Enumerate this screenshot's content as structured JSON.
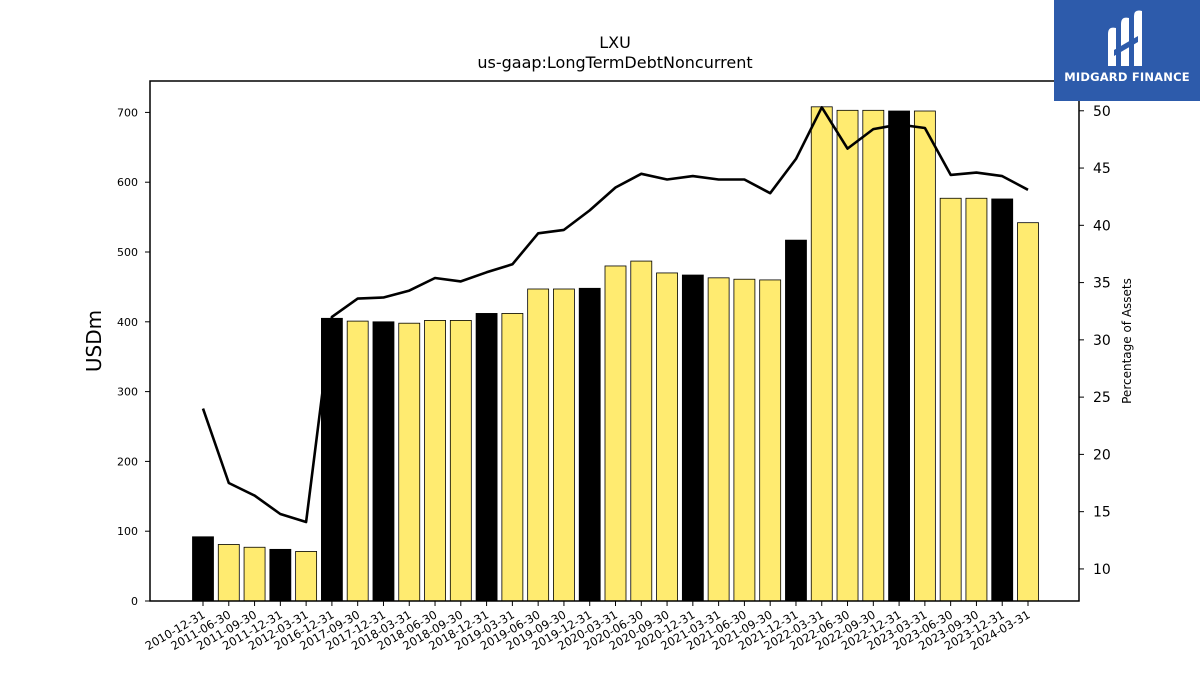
{
  "chart_data": {
    "type": "bar",
    "title": "LXU",
    "subtitle": "us-gaap:LongTermDebtNoncurrent",
    "ylabel": "USDm",
    "y2label": "Percentage of Assets",
    "ylim": [
      0,
      745
    ],
    "y2lim": [
      7.2,
      52.6
    ],
    "yticks": [
      0,
      100,
      200,
      300,
      400,
      500,
      600,
      700
    ],
    "y2ticks": [
      10,
      15,
      20,
      25,
      30,
      35,
      40,
      45,
      50
    ],
    "categories": [
      "2010-12-31",
      "2011-06-30",
      "2011-09-30",
      "2011-12-31",
      "2012-03-31",
      "2016-12-31",
      "2017-09-30",
      "2017-12-31",
      "2018-03-31",
      "2018-06-30",
      "2018-09-30",
      "2018-12-31",
      "2019-03-31",
      "2019-06-30",
      "2019-09-30",
      "2019-12-31",
      "2020-03-31",
      "2020-06-30",
      "2020-09-30",
      "2020-12-31",
      "2021-03-31",
      "2021-06-30",
      "2021-09-30",
      "2021-12-31",
      "2022-03-31",
      "2022-06-30",
      "2022-09-30",
      "2022-12-31",
      "2023-03-31",
      "2023-06-30",
      "2023-09-30",
      "2023-12-31",
      "2024-03-31"
    ],
    "series": [
      {
        "type": "bar",
        "values": [
          92,
          81,
          77,
          74,
          71,
          405,
          401,
          400,
          398,
          402,
          402,
          412,
          412,
          447,
          447,
          448,
          480,
          487,
          470,
          467,
          463,
          461,
          460,
          517,
          708,
          703,
          703,
          702,
          702,
          577,
          577,
          576,
          542
        ]
      },
      {
        "type": "line",
        "axis": "right",
        "values": [
          24.0,
          17.5,
          16.4,
          14.8,
          14.1,
          32.0,
          33.6,
          33.7,
          34.3,
          35.4,
          35.1,
          35.9,
          36.6,
          39.3,
          39.6,
          41.3,
          43.3,
          44.5,
          44.0,
          44.3,
          44.0,
          44.0,
          42.8,
          45.8,
          50.3,
          46.7,
          48.4,
          48.8,
          48.5,
          44.4,
          44.6,
          44.3,
          43.1
        ]
      }
    ],
    "colors": {
      "annual_bar": "#000000",
      "quarter_bar": "#ffeb70",
      "line": "#000000"
    },
    "annual_flags": [
      1,
      0,
      0,
      1,
      0,
      1,
      0,
      1,
      0,
      0,
      0,
      1,
      0,
      0,
      0,
      1,
      0,
      0,
      0,
      1,
      0,
      0,
      0,
      1,
      0,
      0,
      0,
      1,
      0,
      0,
      0,
      1,
      0
    ]
  },
  "logo": {
    "text": "MIDGARD FINANCE",
    "icon": "midgard-logo-icon"
  }
}
